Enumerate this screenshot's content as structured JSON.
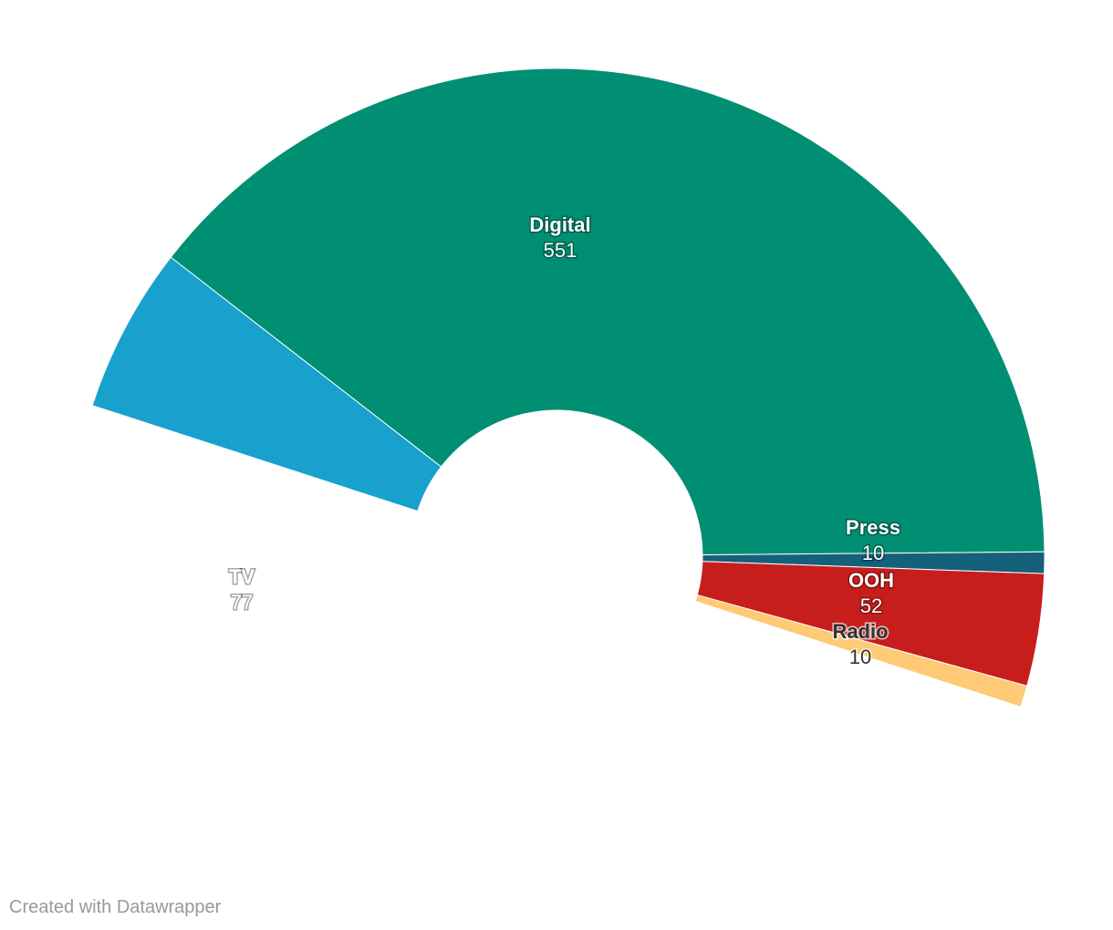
{
  "chart_data": {
    "type": "pie",
    "variant": "semicircle-donut",
    "slices": [
      {
        "label": "TV",
        "value": 77,
        "color": "#18a1cd",
        "text": "light"
      },
      {
        "label": "Digital",
        "value": 551,
        "color": "#008f73",
        "text": "light"
      },
      {
        "label": "Press",
        "value": 10,
        "color": "#15607a",
        "text": "light"
      },
      {
        "label": "OOH",
        "value": 52,
        "color": "#c71e1d",
        "text": "light"
      },
      {
        "label": "Radio",
        "value": 10,
        "color": "#ffca76",
        "text": "dark"
      }
    ]
  },
  "footer": {
    "credit": "Created with Datawrapper"
  }
}
